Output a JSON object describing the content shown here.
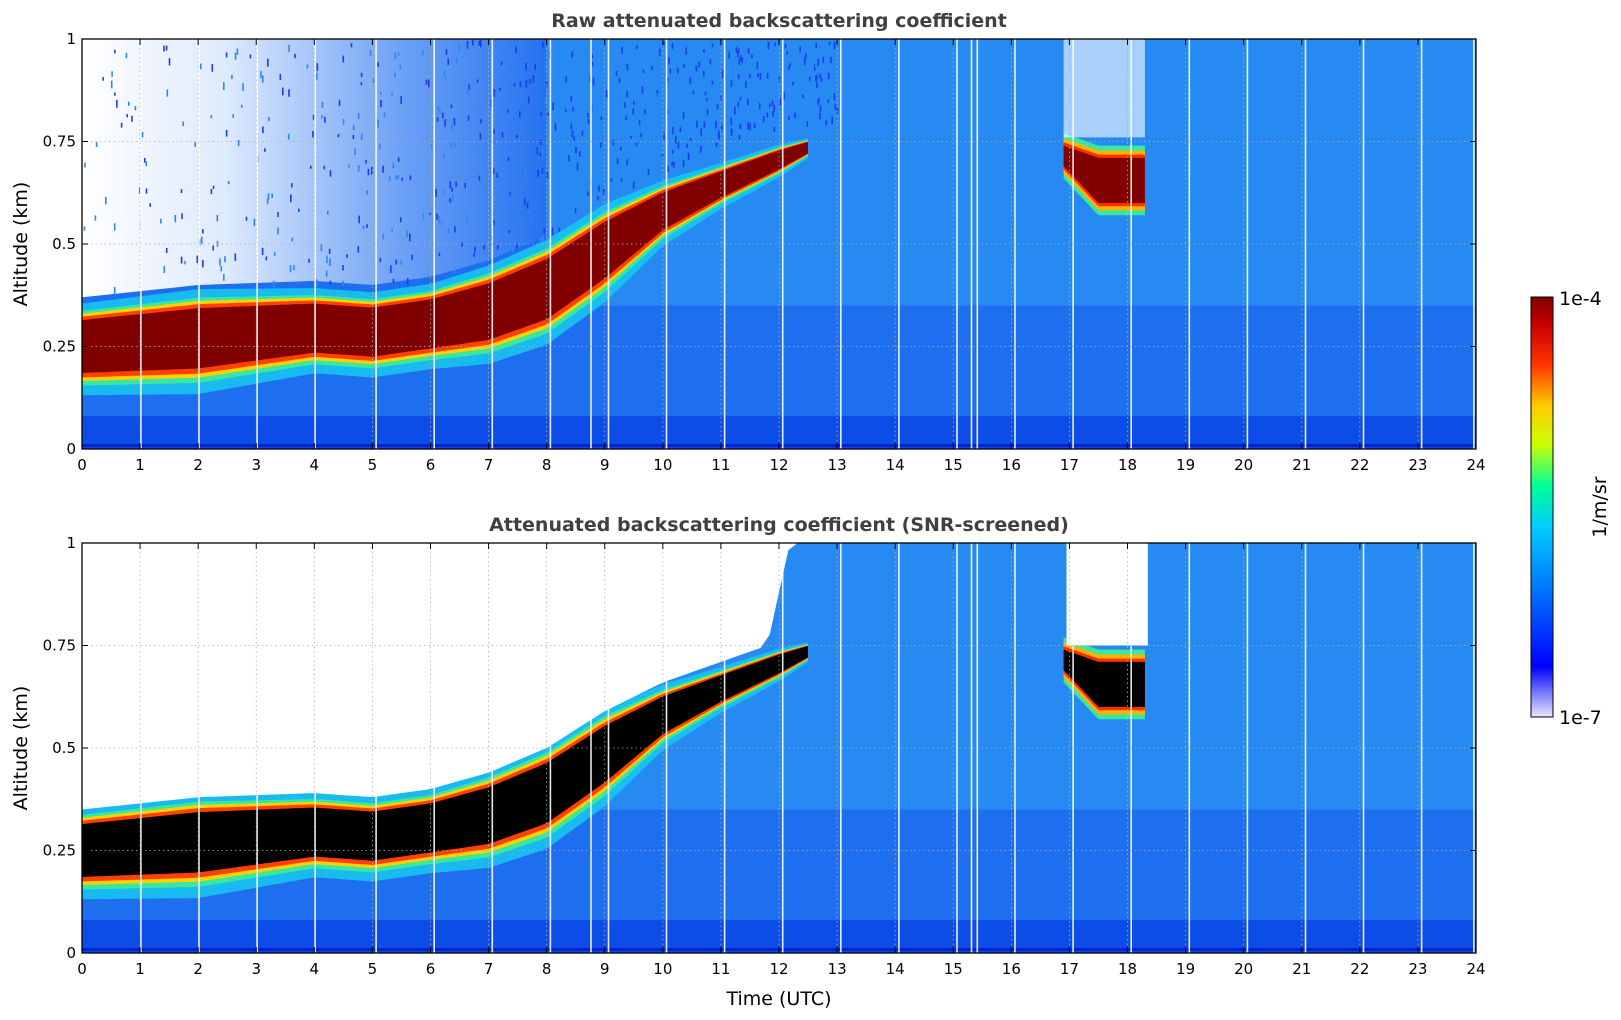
{
  "chart_data": [
    {
      "type": "heatmap",
      "title": "Raw attenuated backscattering coefficient",
      "xlabel": "",
      "ylabel": "Altitude (km)",
      "xlim": [
        0,
        24
      ],
      "ylim": [
        0,
        1
      ],
      "x_ticks": [
        "0",
        "1",
        "2",
        "3",
        "4",
        "5",
        "6",
        "7",
        "8",
        "9",
        "10",
        "11",
        "12",
        "13",
        "14",
        "15",
        "16",
        "17",
        "18",
        "19",
        "20",
        "21",
        "22",
        "23",
        "24"
      ],
      "y_ticks": [
        "0",
        "0.25",
        "0.5",
        "0.75",
        "1"
      ],
      "grid": true,
      "screened": false,
      "layer_top_km": [
        {
          "t": 0,
          "alt": 0.32
        },
        {
          "t": 2,
          "alt": 0.35
        },
        {
          "t": 4,
          "alt": 0.36
        },
        {
          "t": 5,
          "alt": 0.35
        },
        {
          "t": 6,
          "alt": 0.37
        },
        {
          "t": 7,
          "alt": 0.41
        },
        {
          "t": 8,
          "alt": 0.47
        },
        {
          "t": 9,
          "alt": 0.56
        },
        {
          "t": 10,
          "alt": 0.63
        },
        {
          "t": 11,
          "alt": 0.68
        },
        {
          "t": 12,
          "alt": 0.73
        },
        {
          "t": 12.5,
          "alt": 0.75
        }
      ],
      "layer_bottom_km": [
        {
          "t": 0,
          "alt": 0.18
        },
        {
          "t": 2,
          "alt": 0.19
        },
        {
          "t": 4,
          "alt": 0.23
        },
        {
          "t": 5,
          "alt": 0.22
        },
        {
          "t": 6,
          "alt": 0.24
        },
        {
          "t": 7,
          "alt": 0.26
        },
        {
          "t": 8,
          "alt": 0.31
        },
        {
          "t": 9,
          "alt": 0.41
        },
        {
          "t": 10,
          "alt": 0.53
        },
        {
          "t": 11,
          "alt": 0.61
        },
        {
          "t": 12,
          "alt": 0.68
        },
        {
          "t": 12.5,
          "alt": 0.72
        }
      ],
      "second_layer_top_km": [
        {
          "t": 16.9,
          "alt": 0.74
        },
        {
          "t": 17.5,
          "alt": 0.71
        },
        {
          "t": 18.3,
          "alt": 0.71
        }
      ],
      "second_layer_bottom_km": [
        {
          "t": 16.9,
          "alt": 0.69
        },
        {
          "t": 17.5,
          "alt": 0.6
        },
        {
          "t": 18.3,
          "alt": 0.6
        }
      ]
    },
    {
      "type": "heatmap",
      "title": "Attenuated backscattering coefficient (SNR-screened)",
      "xlabel": "Time (UTC)",
      "ylabel": "Altitude (km)",
      "xlim": [
        0,
        24
      ],
      "ylim": [
        0,
        1
      ],
      "x_ticks": [
        "0",
        "1",
        "2",
        "3",
        "4",
        "5",
        "6",
        "7",
        "8",
        "9",
        "10",
        "11",
        "12",
        "13",
        "14",
        "15",
        "16",
        "17",
        "18",
        "19",
        "20",
        "21",
        "22",
        "23",
        "24"
      ],
      "y_ticks": [
        "0",
        "0.25",
        "0.5",
        "0.75",
        "1"
      ],
      "grid": true,
      "screened": true,
      "layer_top_km": [
        {
          "t": 0,
          "alt": 0.32
        },
        {
          "t": 2,
          "alt": 0.35
        },
        {
          "t": 4,
          "alt": 0.36
        },
        {
          "t": 5,
          "alt": 0.35
        },
        {
          "t": 6,
          "alt": 0.37
        },
        {
          "t": 7,
          "alt": 0.41
        },
        {
          "t": 8,
          "alt": 0.47
        },
        {
          "t": 9,
          "alt": 0.56
        },
        {
          "t": 10,
          "alt": 0.63
        },
        {
          "t": 11,
          "alt": 0.68
        },
        {
          "t": 12,
          "alt": 0.73
        },
        {
          "t": 12.5,
          "alt": 0.75
        }
      ],
      "layer_bottom_km": [
        {
          "t": 0,
          "alt": 0.18
        },
        {
          "t": 2,
          "alt": 0.19
        },
        {
          "t": 4,
          "alt": 0.23
        },
        {
          "t": 5,
          "alt": 0.22
        },
        {
          "t": 6,
          "alt": 0.24
        },
        {
          "t": 7,
          "alt": 0.26
        },
        {
          "t": 8,
          "alt": 0.31
        },
        {
          "t": 9,
          "alt": 0.41
        },
        {
          "t": 10,
          "alt": 0.53
        },
        {
          "t": 11,
          "alt": 0.61
        },
        {
          "t": 12,
          "alt": 0.68
        },
        {
          "t": 12.5,
          "alt": 0.72
        }
      ],
      "second_layer_top_km": [
        {
          "t": 16.9,
          "alt": 0.74
        },
        {
          "t": 17.5,
          "alt": 0.71
        },
        {
          "t": 18.3,
          "alt": 0.71
        }
      ],
      "second_layer_bottom_km": [
        {
          "t": 16.9,
          "alt": 0.69
        },
        {
          "t": 17.5,
          "alt": 0.6
        },
        {
          "t": 18.3,
          "alt": 0.6
        }
      ]
    }
  ],
  "colorbar": {
    "min_label": "1e-7",
    "max_label": "1e-4",
    "unit_label": "1/m/sr",
    "colors": [
      "#e6e6fa",
      "#0000ff",
      "#0066ff",
      "#00ccff",
      "#00ff99",
      "#ccff00",
      "#ffcc00",
      "#ff3300",
      "#cc0000",
      "#800000"
    ]
  },
  "colors": {
    "saturated_raw": "#800000",
    "saturated_screened": "#000000",
    "background_signal": "#1e6ff0"
  }
}
